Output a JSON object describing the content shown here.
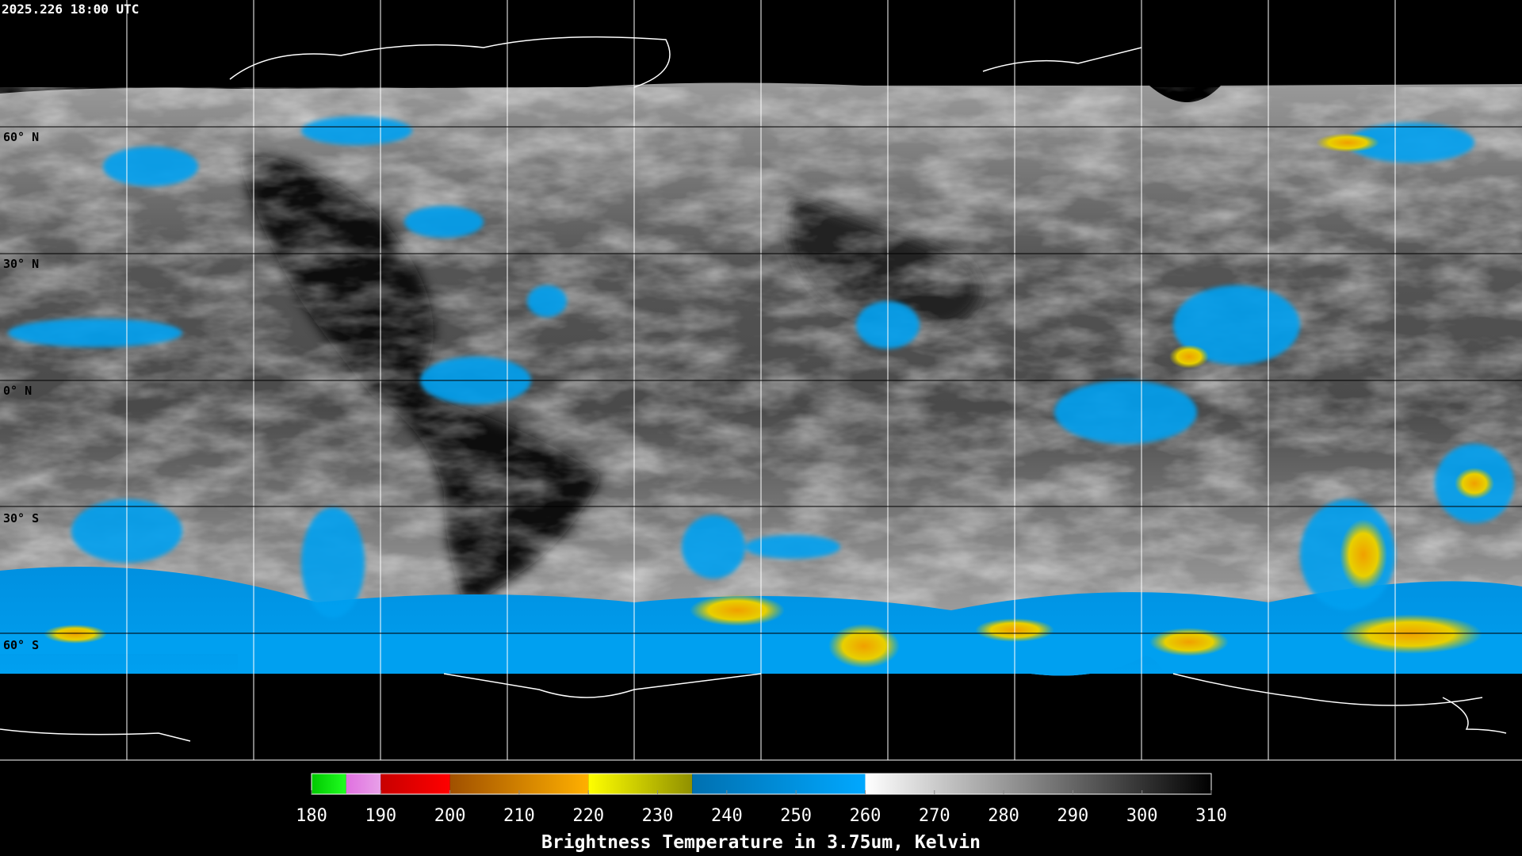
{
  "header": {
    "title": "2025.226 18:00 UTC"
  },
  "grid": {
    "lat_labels": [
      "60° N",
      "30° N",
      "0° N",
      "30° S",
      "60° S"
    ]
  },
  "colorbar": {
    "lim": [
      180,
      310
    ],
    "ticks": [
      180,
      190,
      200,
      210,
      220,
      230,
      240,
      250,
      260,
      270,
      280,
      290,
      300,
      310
    ],
    "label": "Brightness Temperature in 3.75um, Kelvin",
    "segments": [
      {
        "from": 180,
        "to": 185,
        "colors": [
          "#00c800",
          "#20ff20"
        ]
      },
      {
        "from": 185,
        "to": 190,
        "colors": [
          "#e070e0",
          "#e8a0e8"
        ]
      },
      {
        "from": 190,
        "to": 200,
        "colors": [
          "#c80000",
          "#ff0000"
        ]
      },
      {
        "from": 200,
        "to": 220,
        "colors": [
          "#a05000",
          "#ffb000"
        ]
      },
      {
        "from": 220,
        "to": 235,
        "colors": [
          "#ffff00",
          "#909000"
        ]
      },
      {
        "from": 235,
        "to": 260,
        "colors": [
          "#0070b0",
          "#00a8ff"
        ]
      },
      {
        "from": 260,
        "to": 310,
        "colors": [
          "#ffffff",
          "#000000"
        ]
      }
    ]
  }
}
